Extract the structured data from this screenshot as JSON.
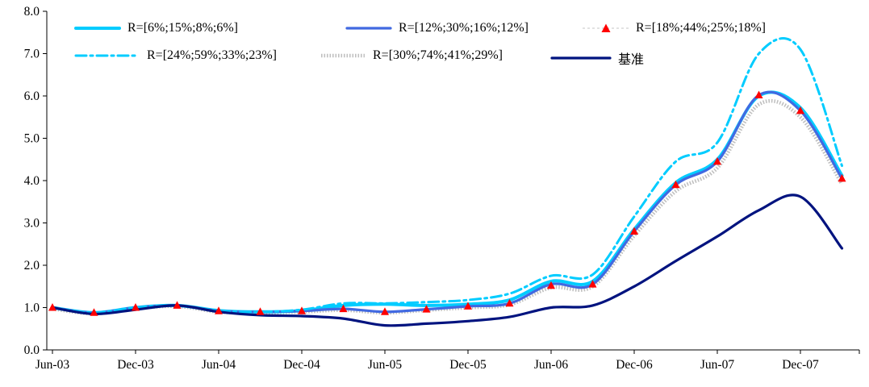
{
  "chart_data": {
    "type": "line",
    "title": "",
    "xlabel": "",
    "ylabel": "",
    "ylim": [
      0,
      8
    ],
    "y_tick_step": 1,
    "y_tick_labels": [
      "0.0",
      "1.0",
      "2.0",
      "3.0",
      "4.0",
      "5.0",
      "6.0",
      "7.0",
      "8.0"
    ],
    "x_tick_labels": [
      "Jun-03",
      "Dec-03",
      "Jun-04",
      "Dec-04",
      "Jun-05",
      "Dec-05",
      "Jun-06",
      "Dec-06",
      "Jun-07",
      "Dec-07"
    ],
    "categories": [
      "Jun-03",
      "Sep-03",
      "Dec-03",
      "Mar-04",
      "Jun-04",
      "Sep-04",
      "Dec-04",
      "Mar-05",
      "Jun-05",
      "Sep-05",
      "Dec-05",
      "Mar-06",
      "Jun-06",
      "Sep-06",
      "Dec-06",
      "Mar-07",
      "Jun-07",
      "Sep-07",
      "Dec-07",
      "Mar-08"
    ],
    "grid": false,
    "legend_position": "top-left-inside",
    "axis_color": "#000000",
    "series": [
      {
        "name": "R=[6%;15%;8%;6%]",
        "color": "#00CCFF",
        "style": "solid",
        "width": 4,
        "values": [
          1.0,
          0.88,
          1.0,
          1.05,
          0.93,
          0.9,
          0.93,
          1.05,
          1.08,
          1.05,
          1.08,
          1.18,
          1.62,
          1.62,
          2.85,
          3.95,
          4.5,
          6.0,
          5.72,
          4.12
        ]
      },
      {
        "name": "R=[12%;30%;16%;12%]",
        "color": "#4169E1",
        "style": "solid",
        "width": 3.2,
        "values": [
          1.0,
          0.88,
          1.0,
          1.05,
          0.92,
          0.9,
          0.92,
          0.97,
          0.9,
          0.96,
          1.03,
          1.1,
          1.55,
          1.55,
          2.8,
          3.9,
          4.45,
          6.02,
          5.65,
          4.05
        ]
      },
      {
        "name": "R=[18%;44%;25%;18%]",
        "color": "#FF0000",
        "style": "markers-triangle",
        "width": 0,
        "values": [
          1.0,
          0.88,
          1.0,
          1.05,
          0.92,
          0.9,
          0.92,
          0.97,
          0.9,
          0.96,
          1.03,
          1.1,
          1.52,
          1.55,
          2.8,
          3.9,
          4.45,
          6.02,
          5.65,
          4.05
        ]
      },
      {
        "name": "R=[24%;59%;33%;23%]",
        "color": "#00CCFF",
        "style": "dash-dot",
        "width": 3,
        "values": [
          1.0,
          0.88,
          1.0,
          1.05,
          0.92,
          0.9,
          0.95,
          1.1,
          1.1,
          1.13,
          1.18,
          1.33,
          1.75,
          1.78,
          3.15,
          4.45,
          4.9,
          7.0,
          7.1,
          4.35
        ]
      },
      {
        "name": "R=[30%;74%;41%;29%]",
        "color": "#C0C0C0",
        "style": "dotted-thick",
        "width": 4.6,
        "values": [
          0.97,
          0.86,
          0.98,
          1.03,
          0.9,
          0.88,
          0.9,
          0.94,
          0.88,
          0.94,
          1.0,
          1.07,
          1.47,
          1.5,
          2.7,
          3.75,
          4.3,
          5.8,
          5.5,
          3.92
        ]
      },
      {
        "name": "基准",
        "color": "#00137F",
        "style": "solid",
        "width": 3.2,
        "values": [
          1.0,
          0.85,
          0.95,
          1.05,
          0.9,
          0.82,
          0.8,
          0.74,
          0.58,
          0.62,
          0.68,
          0.78,
          1.0,
          1.05,
          1.5,
          2.1,
          2.68,
          3.3,
          3.62,
          2.4
        ]
      }
    ]
  }
}
